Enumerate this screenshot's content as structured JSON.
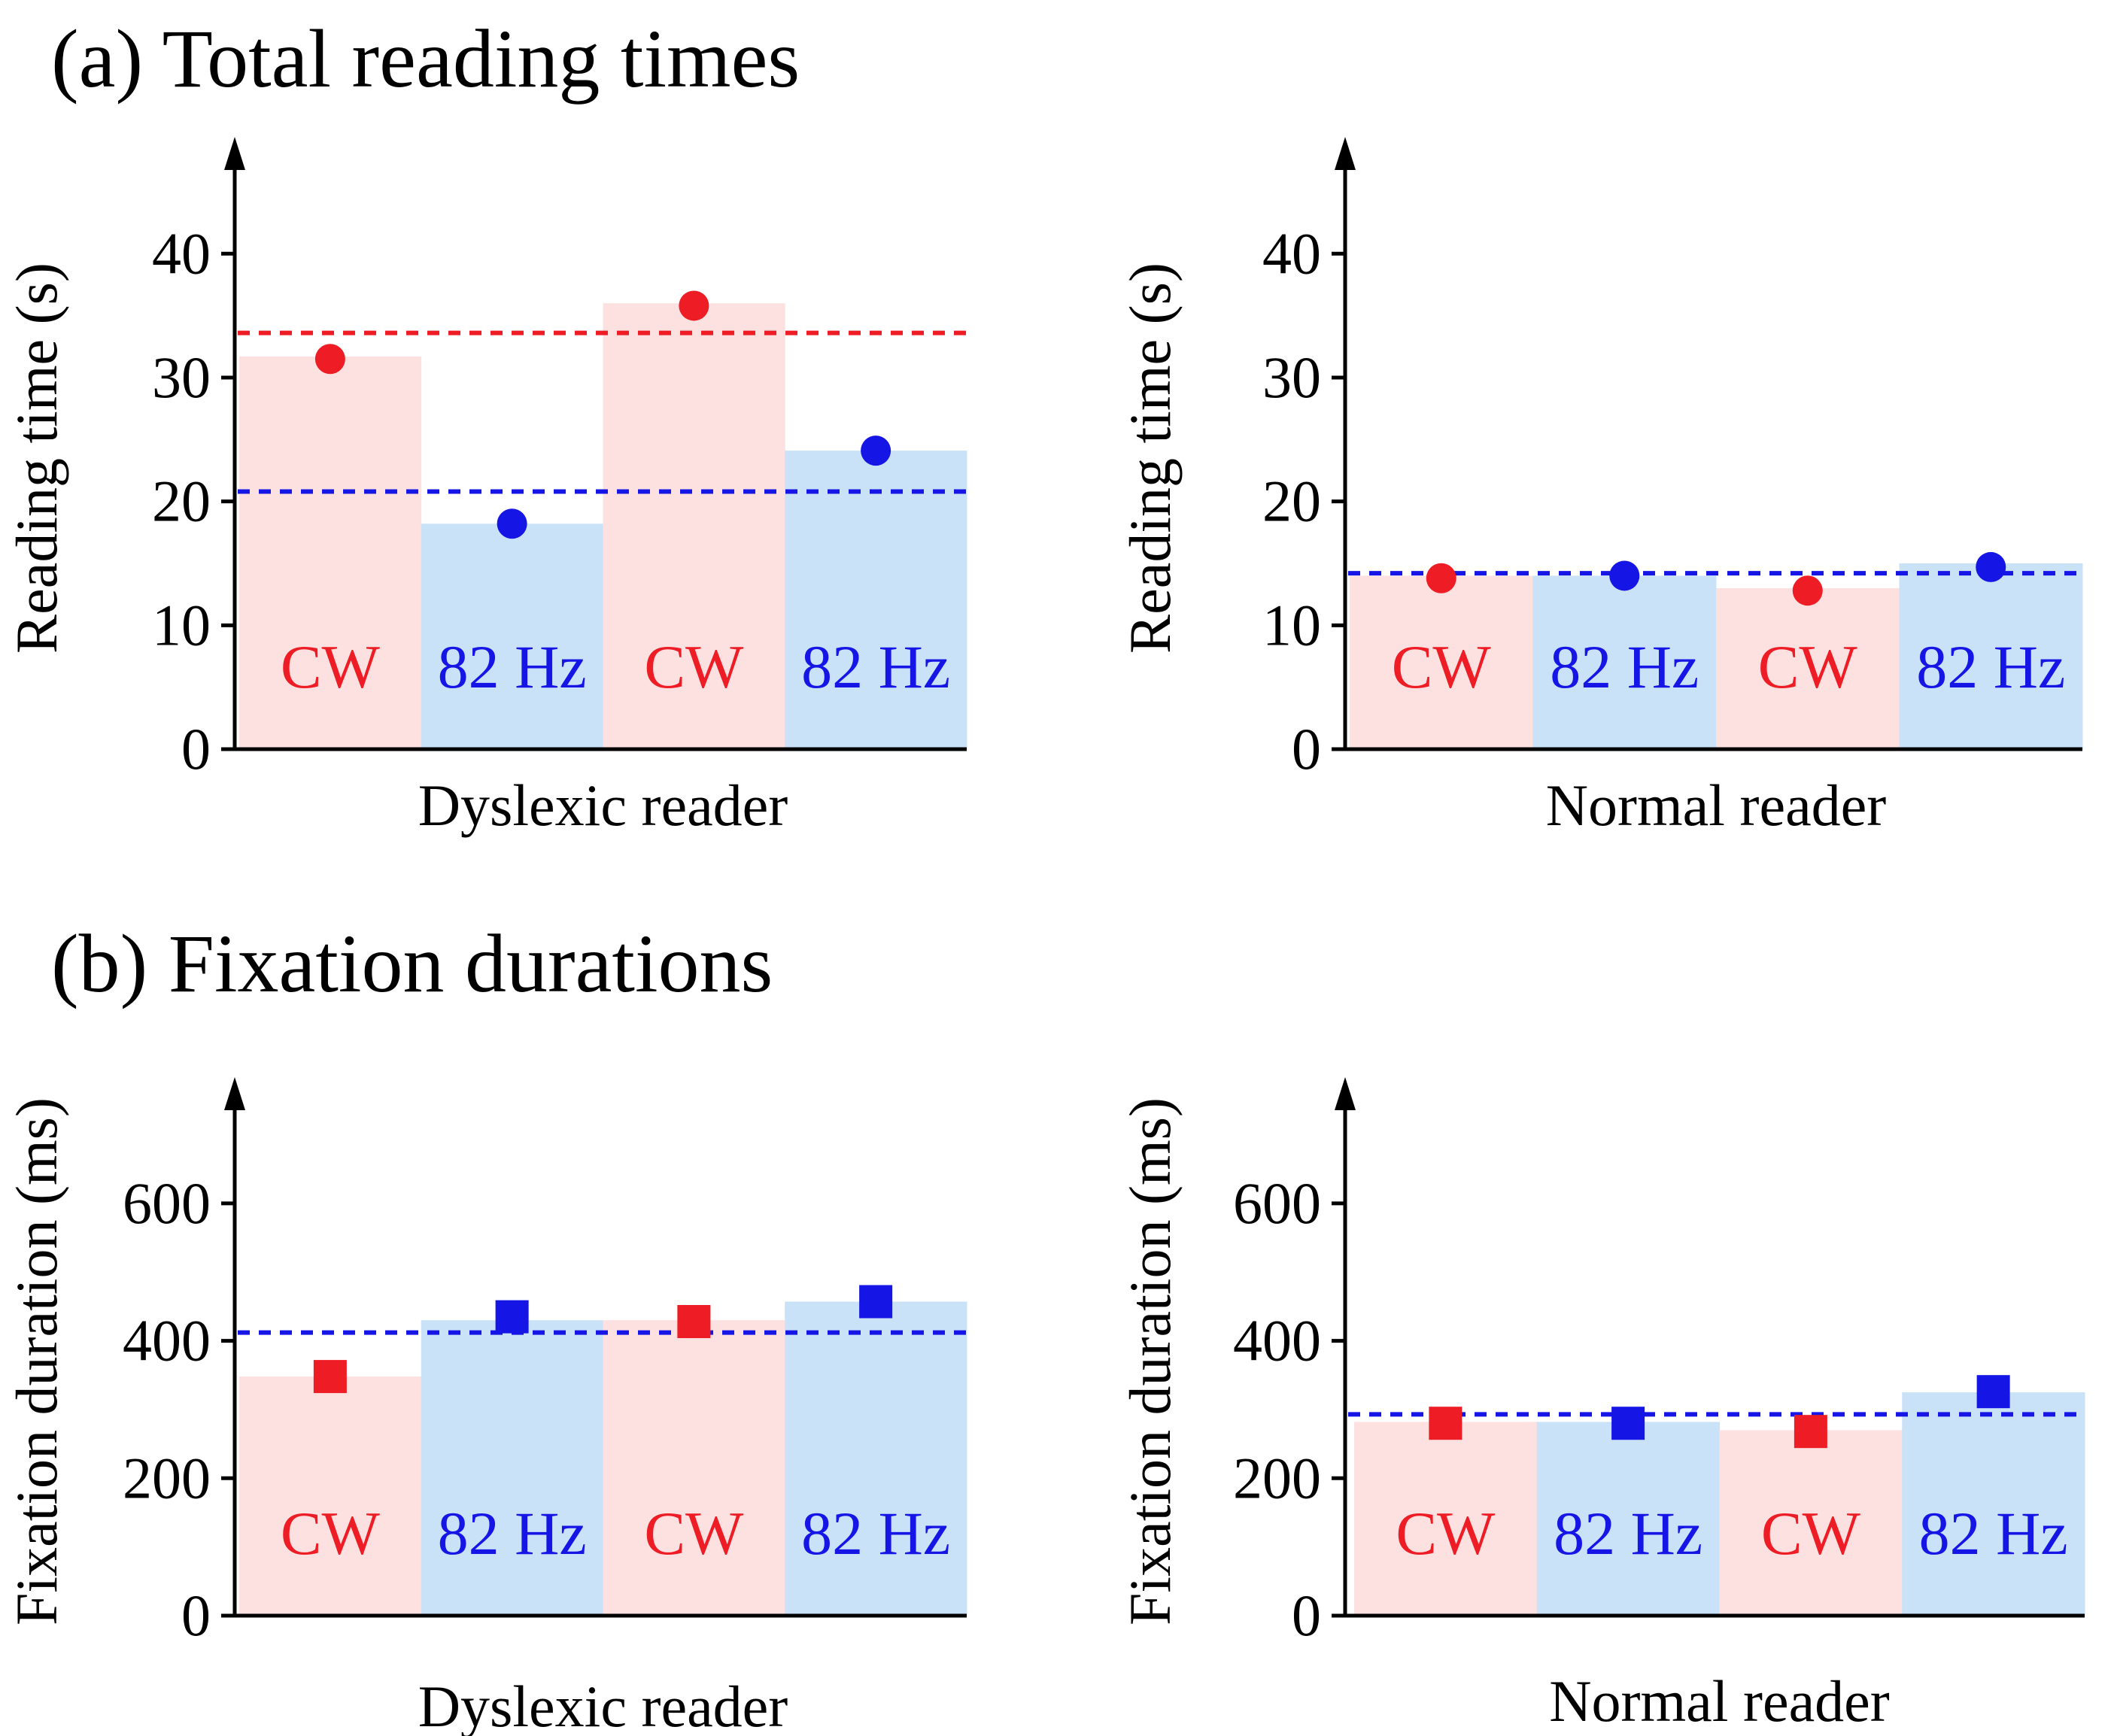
{
  "figure": {
    "panel_a_title": "(a) Total reading times",
    "panel_b_title": "(b) Fixation durations"
  },
  "colors": {
    "cw_text": "#ee1c25",
    "hz_text": "#1515e6",
    "cw_bar": "#fde1e1",
    "hz_bar": "#c9e2f8",
    "cw_marker": "#ee1c25",
    "hz_marker": "#1515e6",
    "axis": "#000000"
  },
  "chart_data": [
    {
      "id": "a-dyslexic",
      "type": "bar",
      "ylabel": "Reading time (s)",
      "xlabel": "Dyslexic reader",
      "ylim": [
        0,
        47
      ],
      "yticks": [
        0,
        10,
        20,
        30,
        40
      ],
      "marker": "circle",
      "categories": [
        "CW",
        "82 Hz",
        "CW",
        "82 Hz"
      ],
      "kinds": [
        "cw",
        "hz",
        "cw",
        "hz"
      ],
      "values": [
        31.7,
        18.2,
        36.0,
        24.1
      ],
      "points": [
        31.5,
        18.2,
        35.8,
        24.1
      ],
      "mean_lines": [
        {
          "kind": "cw",
          "value": 33.6
        },
        {
          "kind": "hz",
          "value": 20.8
        }
      ]
    },
    {
      "id": "a-normal",
      "type": "bar",
      "ylabel": "Reading time (s)",
      "xlabel": "Normal reader",
      "ylim": [
        0,
        47
      ],
      "yticks": [
        0,
        10,
        20,
        30,
        40
      ],
      "marker": "circle",
      "categories": [
        "CW",
        "82 Hz",
        "CW",
        "82 Hz"
      ],
      "kinds": [
        "cw",
        "hz",
        "cw",
        "hz"
      ],
      "values": [
        14.0,
        14.0,
        13.0,
        15.0
      ],
      "points": [
        13.8,
        14.0,
        12.8,
        14.7
      ],
      "mean_lines": [
        {
          "kind": "hz",
          "value": 14.2
        }
      ]
    },
    {
      "id": "b-dyslexic",
      "type": "bar",
      "ylabel": "Fixation duration (ms)",
      "xlabel": "Dyslexic reader",
      "ylim": [
        0,
        740
      ],
      "yticks": [
        0,
        200,
        400,
        600
      ],
      "marker": "square",
      "categories": [
        "CW",
        "82 Hz",
        "CW",
        "82 Hz"
      ],
      "kinds": [
        "cw",
        "hz",
        "cw",
        "hz"
      ],
      "values": [
        348,
        430,
        430,
        457
      ],
      "points": [
        348,
        435,
        428,
        457
      ],
      "mean_lines": [
        {
          "kind": "hz",
          "value": 412
        }
      ]
    },
    {
      "id": "b-normal",
      "type": "bar",
      "ylabel": "Fixation duration (ms)",
      "xlabel": "Normal reader",
      "ylim": [
        0,
        740
      ],
      "yticks": [
        0,
        200,
        400,
        600
      ],
      "marker": "square",
      "categories": [
        "CW",
        "82 Hz",
        "CW",
        "82 Hz"
      ],
      "kinds": [
        "cw",
        "hz",
        "cw",
        "hz"
      ],
      "values": [
        282,
        282,
        270,
        325
      ],
      "points": [
        280,
        280,
        268,
        326
      ],
      "mean_lines": [
        {
          "kind": "hz",
          "value": 293
        }
      ]
    }
  ]
}
